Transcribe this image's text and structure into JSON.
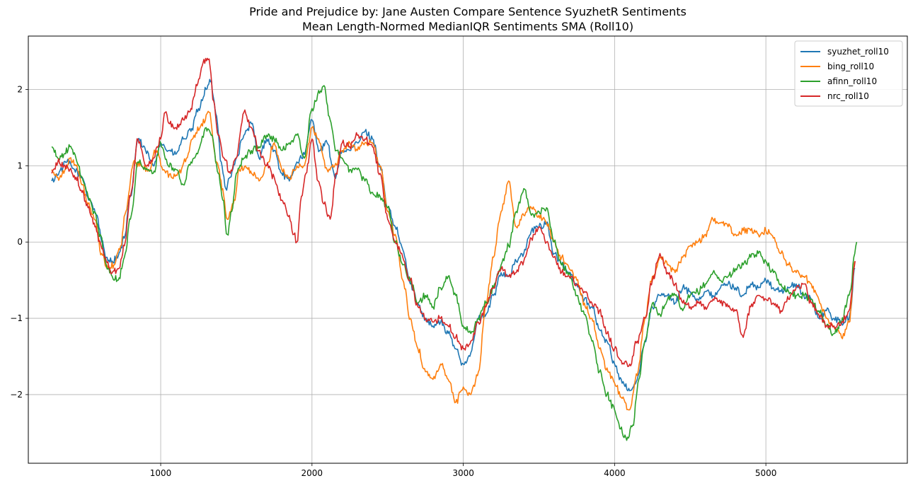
{
  "chart_data": {
    "type": "line",
    "title": [
      "Pride and Prejudice by: Jane Austen Compare Sentence SyuzhetR Sentiments",
      "Mean Length-Normed MedianIQR Sentiments SMA (Roll10)"
    ],
    "xlabel": "",
    "ylabel": "",
    "xlim": [
      125,
      5935
    ],
    "ylim": [
      -2.9,
      2.7
    ],
    "xticks": [
      1000,
      2000,
      3000,
      4000,
      5000
    ],
    "yticks": [
      -2,
      -1,
      0,
      1,
      2
    ],
    "grid": true,
    "legend_position": "top-right",
    "series": [
      {
        "name": "syuzhet_roll10",
        "color": "#1f77b4",
        "x": [
          280,
          330,
          380,
          430,
          480,
          530,
          580,
          610,
          640,
          680,
          720,
          760,
          800,
          850,
          900,
          950,
          1000,
          1050,
          1100,
          1150,
          1200,
          1250,
          1300,
          1330,
          1370,
          1400,
          1430,
          1460,
          1500,
          1550,
          1600,
          1650,
          1700,
          1750,
          1800,
          1850,
          1900,
          1950,
          2000,
          2050,
          2100,
          2150,
          2200,
          2250,
          2300,
          2350,
          2400,
          2450,
          2500,
          2550,
          2600,
          2650,
          2700,
          2750,
          2800,
          2850,
          2900,
          2950,
          3000,
          3050,
          3100,
          3150,
          3200,
          3250,
          3300,
          3350,
          3400,
          3450,
          3500,
          3550,
          3600,
          3650,
          3700,
          3750,
          3800,
          3850,
          3900,
          3950,
          4000,
          4050,
          4100,
          4150,
          4200,
          4250,
          4300,
          4350,
          4400,
          4450,
          4500,
          4550,
          4600,
          4650,
          4700,
          4750,
          4800,
          4850,
          4900,
          4950,
          5000,
          5050,
          5100,
          5150,
          5200,
          5250,
          5300,
          5350,
          5400,
          5450,
          5500,
          5550,
          5590
        ],
        "y": [
          0.8,
          0.92,
          1.05,
          0.95,
          0.85,
          0.55,
          0.35,
          0.0,
          -0.2,
          -0.25,
          -0.18,
          0.05,
          0.6,
          1.35,
          1.2,
          1.0,
          1.3,
          1.2,
          1.15,
          1.35,
          1.45,
          1.75,
          2.0,
          2.1,
          1.65,
          1.05,
          0.7,
          0.85,
          1.1,
          1.4,
          1.55,
          1.1,
          1.35,
          1.2,
          0.9,
          0.8,
          1.05,
          1.15,
          1.6,
          1.2,
          1.3,
          0.85,
          1.2,
          1.2,
          1.3,
          1.45,
          1.35,
          1.0,
          0.45,
          0.2,
          -0.1,
          -0.55,
          -0.8,
          -1.0,
          -1.1,
          -1.05,
          -1.2,
          -1.4,
          -1.6,
          -1.45,
          -1.0,
          -0.95,
          -0.7,
          -0.4,
          -0.45,
          -0.25,
          -0.15,
          0.15,
          0.2,
          0.25,
          -0.15,
          -0.3,
          -0.4,
          -0.55,
          -0.75,
          -0.85,
          -1.15,
          -1.3,
          -1.6,
          -1.85,
          -1.95,
          -1.8,
          -1.3,
          -0.85,
          -0.7,
          -0.7,
          -0.8,
          -0.6,
          -0.65,
          -0.75,
          -0.65,
          -0.7,
          -0.6,
          -0.55,
          -0.6,
          -0.7,
          -0.55,
          -0.6,
          -0.5,
          -0.6,
          -0.65,
          -0.6,
          -0.55,
          -0.7,
          -0.75,
          -1.0,
          -0.9,
          -1.0,
          -1.05,
          -1.0,
          -0.35
        ]
      },
      {
        "name": "bing_roll10",
        "color": "#ff7f0e",
        "x": [
          280,
          320,
          360,
          400,
          440,
          480,
          520,
          560,
          610,
          650,
          690,
          730,
          770,
          820,
          870,
          920,
          970,
          1020,
          1070,
          1120,
          1170,
          1220,
          1270,
          1320,
          1370,
          1410,
          1440,
          1480,
          1520,
          1560,
          1600,
          1650,
          1700,
          1750,
          1800,
          1850,
          1900,
          1950,
          2000,
          2050,
          2100,
          2150,
          2200,
          2250,
          2300,
          2350,
          2400,
          2450,
          2500,
          2550,
          2600,
          2650,
          2700,
          2750,
          2800,
          2850,
          2900,
          2950,
          3000,
          3050,
          3100,
          3150,
          3200,
          3250,
          3300,
          3350,
          3400,
          3450,
          3500,
          3550,
          3600,
          3650,
          3700,
          3750,
          3800,
          3850,
          3900,
          3950,
          4000,
          4050,
          4100,
          4150,
          4200,
          4250,
          4300,
          4350,
          4400,
          4450,
          4500,
          4550,
          4600,
          4650,
          4700,
          4750,
          4800,
          4850,
          4900,
          4950,
          5000,
          5050,
          5100,
          5150,
          5200,
          5250,
          5300,
          5350,
          5400,
          5450,
          5500,
          5550,
          5590
        ],
        "y": [
          0.95,
          0.85,
          0.9,
          1.1,
          1.0,
          0.75,
          0.5,
          0.3,
          -0.15,
          -0.35,
          -0.3,
          -0.1,
          0.4,
          1.05,
          1.0,
          0.95,
          1.2,
          0.95,
          0.85,
          0.9,
          1.1,
          1.4,
          1.55,
          1.7,
          1.05,
          0.7,
          0.3,
          0.5,
          0.95,
          1.0,
          0.9,
          0.8,
          1.0,
          1.3,
          0.95,
          0.85,
          1.0,
          1.0,
          1.5,
          1.3,
          0.95,
          1.0,
          1.2,
          1.3,
          1.2,
          1.3,
          1.3,
          1.0,
          0.4,
          0.1,
          -0.5,
          -1.0,
          -1.4,
          -1.7,
          -1.8,
          -1.6,
          -1.8,
          -2.1,
          -1.9,
          -2.0,
          -1.7,
          -0.8,
          -0.2,
          0.4,
          0.8,
          0.2,
          0.35,
          0.45,
          0.35,
          0.25,
          0.0,
          -0.2,
          -0.35,
          -0.5,
          -0.8,
          -1.0,
          -1.4,
          -1.65,
          -1.85,
          -2.05,
          -2.2,
          -1.75,
          -1.0,
          -0.45,
          -0.2,
          -0.3,
          -0.4,
          -0.2,
          -0.05,
          0.0,
          0.1,
          0.3,
          0.25,
          0.2,
          0.1,
          0.15,
          0.15,
          0.1,
          0.15,
          0.05,
          -0.15,
          -0.3,
          -0.4,
          -0.45,
          -0.55,
          -0.75,
          -1.0,
          -1.1,
          -1.25,
          -1.05,
          -0.25
        ]
      },
      {
        "name": "afinn_roll10",
        "color": "#2ca02c",
        "x": [
          280,
          320,
          360,
          400,
          440,
          480,
          520,
          560,
          600,
          640,
          680,
          720,
          760,
          800,
          850,
          900,
          950,
          1000,
          1050,
          1100,
          1150,
          1200,
          1250,
          1300,
          1340,
          1380,
          1410,
          1440,
          1470,
          1500,
          1550,
          1600,
          1650,
          1700,
          1750,
          1800,
          1850,
          1900,
          1950,
          2000,
          2050,
          2080,
          2120,
          2160,
          2200,
          2250,
          2300,
          2350,
          2400,
          2450,
          2500,
          2550,
          2600,
          2650,
          2700,
          2750,
          2800,
          2850,
          2900,
          2950,
          3000,
          3050,
          3100,
          3150,
          3200,
          3250,
          3300,
          3350,
          3400,
          3450,
          3500,
          3550,
          3600,
          3650,
          3700,
          3750,
          3800,
          3850,
          3900,
          3950,
          4000,
          4040,
          4080,
          4120,
          4160,
          4200,
          4250,
          4300,
          4350,
          4400,
          4450,
          4500,
          4550,
          4600,
          4650,
          4700,
          4750,
          4800,
          4850,
          4900,
          4950,
          5000,
          5050,
          5100,
          5150,
          5200,
          5250,
          5300,
          5350,
          5400,
          5450,
          5500,
          5550,
          5600
        ],
        "y": [
          1.25,
          1.1,
          1.15,
          1.25,
          1.1,
          0.85,
          0.6,
          0.4,
          0.1,
          -0.3,
          -0.45,
          -0.5,
          -0.2,
          0.3,
          1.05,
          0.95,
          0.9,
          1.3,
          1.0,
          0.95,
          0.75,
          1.05,
          1.2,
          1.5,
          1.4,
          0.9,
          0.55,
          0.1,
          0.4,
          0.9,
          1.1,
          1.2,
          1.25,
          1.4,
          1.35,
          1.2,
          1.3,
          1.4,
          1.1,
          1.75,
          1.95,
          2.05,
          1.6,
          1.2,
          1.1,
          0.95,
          0.95,
          0.8,
          0.65,
          0.6,
          0.45,
          0.0,
          -0.3,
          -0.5,
          -0.8,
          -0.7,
          -0.85,
          -0.6,
          -0.45,
          -0.7,
          -1.1,
          -1.2,
          -1.0,
          -0.8,
          -0.6,
          -0.3,
          -0.05,
          0.4,
          0.7,
          0.35,
          0.4,
          0.45,
          0.0,
          -0.3,
          -0.4,
          -0.7,
          -0.95,
          -1.3,
          -1.7,
          -2.0,
          -2.2,
          -2.45,
          -2.6,
          -2.4,
          -1.8,
          -1.3,
          -0.8,
          -0.95,
          -0.75,
          -0.7,
          -0.9,
          -0.7,
          -0.65,
          -0.55,
          -0.4,
          -0.5,
          -0.45,
          -0.35,
          -0.3,
          -0.2,
          -0.15,
          -0.25,
          -0.4,
          -0.55,
          -0.65,
          -0.7,
          -0.7,
          -0.75,
          -0.9,
          -1.1,
          -1.2,
          -1.05,
          -0.7,
          0.0
        ]
      },
      {
        "name": "nrc_roll10",
        "color": "#d62728",
        "x": [
          280,
          320,
          360,
          400,
          440,
          480,
          520,
          560,
          600,
          640,
          680,
          720,
          760,
          800,
          850,
          900,
          950,
          1000,
          1030,
          1060,
          1100,
          1150,
          1200,
          1240,
          1280,
          1320,
          1350,
          1380,
          1420,
          1460,
          1500,
          1550,
          1600,
          1650,
          1700,
          1750,
          1800,
          1850,
          1880,
          1900,
          1930,
          1960,
          2000,
          2040,
          2080,
          2120,
          2160,
          2200,
          2250,
          2300,
          2350,
          2400,
          2450,
          2500,
          2550,
          2600,
          2650,
          2700,
          2750,
          2800,
          2850,
          2900,
          2950,
          3000,
          3050,
          3100,
          3150,
          3200,
          3250,
          3300,
          3350,
          3400,
          3450,
          3500,
          3550,
          3600,
          3650,
          3700,
          3750,
          3800,
          3850,
          3900,
          3950,
          4000,
          4050,
          4100,
          4150,
          4200,
          4250,
          4300,
          4350,
          4400,
          4450,
          4500,
          4550,
          4600,
          4650,
          4700,
          4750,
          4800,
          4850,
          4900,
          4950,
          5000,
          5050,
          5100,
          5150,
          5200,
          5250,
          5300,
          5350,
          5400,
          5450,
          5500,
          5550,
          5590
        ],
        "y": [
          0.9,
          1.05,
          1.0,
          0.95,
          0.85,
          0.65,
          0.45,
          0.25,
          0.0,
          -0.25,
          -0.4,
          -0.35,
          -0.05,
          0.6,
          1.35,
          1.0,
          1.1,
          1.35,
          1.7,
          1.55,
          1.5,
          1.6,
          1.75,
          2.05,
          2.35,
          2.4,
          1.85,
          1.4,
          1.1,
          0.9,
          1.1,
          1.7,
          1.5,
          1.2,
          1.0,
          0.85,
          0.55,
          0.35,
          0.1,
          0.0,
          0.6,
          0.9,
          1.35,
          0.8,
          0.5,
          0.3,
          0.9,
          1.3,
          1.25,
          1.4,
          1.35,
          1.25,
          0.9,
          0.3,
          0.0,
          -0.2,
          -0.5,
          -0.85,
          -1.0,
          -1.05,
          -1.0,
          -1.1,
          -1.25,
          -1.4,
          -1.3,
          -1.05,
          -0.85,
          -0.6,
          -0.35,
          -0.45,
          -0.4,
          -0.25,
          0.05,
          0.2,
          0.0,
          -0.2,
          -0.4,
          -0.45,
          -0.55,
          -0.65,
          -0.8,
          -0.9,
          -1.2,
          -1.4,
          -1.6,
          -1.6,
          -1.3,
          -1.0,
          -0.5,
          -0.15,
          -0.4,
          -0.55,
          -0.8,
          -0.85,
          -0.8,
          -0.85,
          -0.75,
          -0.8,
          -0.85,
          -0.9,
          -1.25,
          -0.85,
          -0.7,
          -0.75,
          -0.8,
          -0.9,
          -0.75,
          -0.6,
          -0.55,
          -0.8,
          -0.95,
          -1.1,
          -1.1,
          -1.05,
          -0.9,
          -0.25
        ]
      }
    ]
  }
}
